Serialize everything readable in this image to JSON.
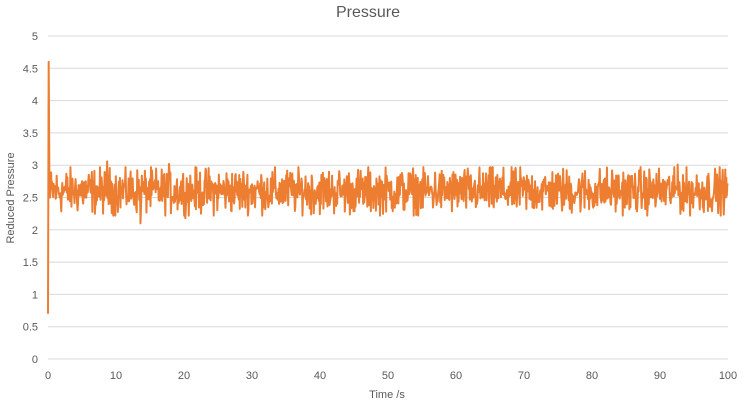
{
  "chart_data": {
    "type": "line",
    "title": "Pressure",
    "xlabel": "Time /s",
    "ylabel": "Reduced Pressure",
    "xlim": [
      0,
      100
    ],
    "ylim": [
      0,
      5
    ],
    "x_ticks": [
      0,
      10,
      20,
      30,
      40,
      50,
      60,
      70,
      80,
      90,
      100
    ],
    "y_ticks": [
      0,
      0.5,
      1,
      1.5,
      2,
      2.5,
      3,
      3.5,
      4,
      4.5,
      5
    ],
    "grid": true,
    "legend": "none",
    "series": [
      {
        "color": "#ED7D31",
        "initial_points": [
          [
            0,
            0.7
          ],
          [
            0.1,
            4.6
          ],
          [
            0.2,
            2.9
          ],
          [
            0.3,
            2.5
          ]
        ],
        "mean": 2.6,
        "noise_range": [
          2.1,
          3.05
        ],
        "notable_points": [
          [
            8.7,
            3.06
          ],
          [
            13.6,
            2.1
          ],
          [
            17.8,
            3.02
          ],
          [
            20.2,
            2.18
          ],
          [
            92.6,
            3.01
          ]
        ]
      }
    ]
  }
}
